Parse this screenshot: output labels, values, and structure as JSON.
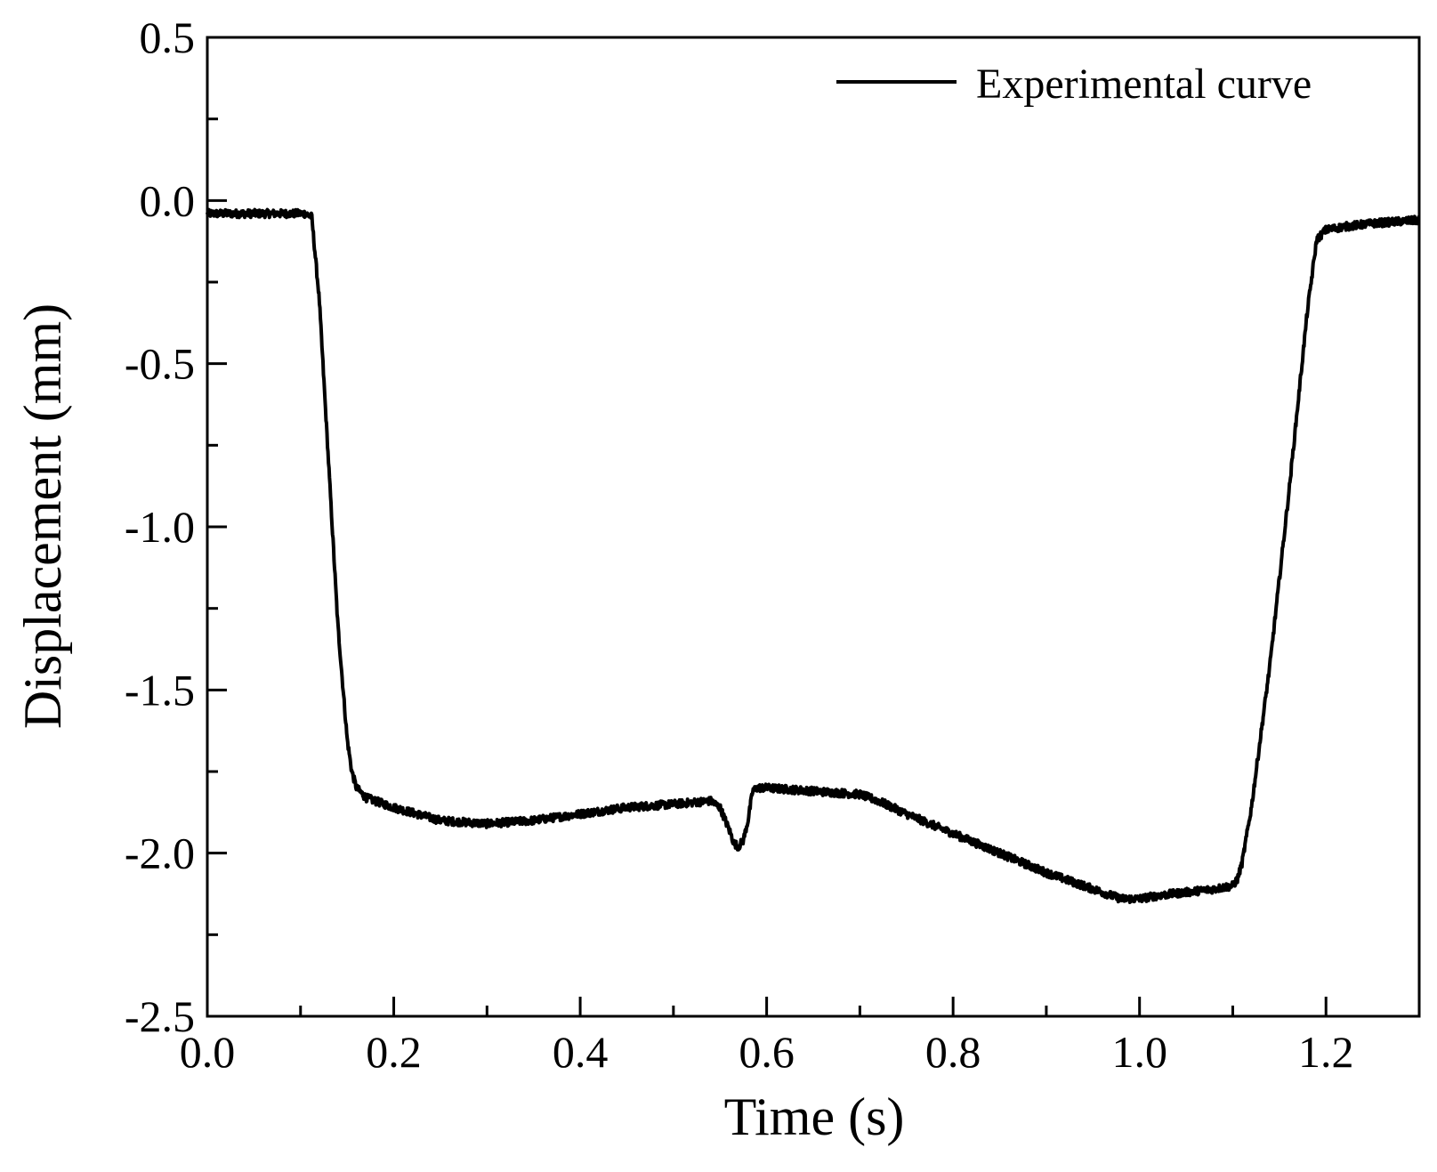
{
  "chart_data": {
    "type": "line",
    "title": "",
    "xlabel": "Time (s)",
    "ylabel": "Displacement (mm)",
    "xlim": [
      0.0,
      1.3
    ],
    "ylim": [
      -2.5,
      0.5
    ],
    "x_ticks": [
      0.0,
      0.2,
      0.4,
      0.6,
      0.8,
      1.0,
      1.2
    ],
    "x_tick_labels": [
      "0.0",
      "0.2",
      "0.4",
      "0.6",
      "0.8",
      "1.0",
      "1.2"
    ],
    "x_minor_ticks": [
      0.1,
      0.3,
      0.5,
      0.7,
      0.9,
      1.1
    ],
    "y_ticks": [
      0.5,
      0.0,
      -0.5,
      -1.0,
      -1.5,
      -2.0,
      -2.5
    ],
    "y_tick_labels": [
      "0.5",
      "0.0",
      "-0.5",
      "-1.0",
      "-1.5",
      "-2.0",
      "-2.5"
    ],
    "y_minor_ticks": [
      0.25,
      -0.25,
      -0.75,
      -1.25,
      -1.75,
      -2.25
    ],
    "grid": false,
    "legend": {
      "position": "top-right",
      "entries": [
        "Experimental curve"
      ]
    },
    "series": [
      {
        "name": "Experimental curve",
        "color": "#000000",
        "noise_amplitude_mm": 0.012,
        "x": [
          0.0,
          0.05,
          0.105,
          0.112,
          0.12,
          0.13,
          0.14,
          0.15,
          0.155,
          0.16,
          0.17,
          0.2,
          0.25,
          0.3,
          0.35,
          0.4,
          0.45,
          0.5,
          0.54,
          0.55,
          0.56,
          0.565,
          0.57,
          0.575,
          0.58,
          0.585,
          0.59,
          0.6,
          0.65,
          0.7,
          0.72,
          0.75,
          0.8,
          0.85,
          0.9,
          0.95,
          0.98,
          1.0,
          1.02,
          1.05,
          1.08,
          1.1,
          1.105,
          1.11,
          1.12,
          1.14,
          1.16,
          1.18,
          1.19,
          1.2,
          1.22,
          1.25,
          1.3
        ],
        "y": [
          -0.04,
          -0.04,
          -0.04,
          -0.05,
          -0.3,
          -0.8,
          -1.3,
          -1.65,
          -1.75,
          -1.8,
          -1.83,
          -1.86,
          -1.9,
          -1.91,
          -1.9,
          -1.88,
          -1.86,
          -1.85,
          -1.84,
          -1.86,
          -1.93,
          -1.97,
          -1.98,
          -1.96,
          -1.9,
          -1.81,
          -1.8,
          -1.8,
          -1.81,
          -1.82,
          -1.84,
          -1.88,
          -1.94,
          -2.0,
          -2.06,
          -2.11,
          -2.14,
          -2.14,
          -2.13,
          -2.12,
          -2.11,
          -2.1,
          -2.08,
          -2.03,
          -1.86,
          -1.42,
          -0.9,
          -0.34,
          -0.12,
          -0.09,
          -0.08,
          -0.07,
          -0.06
        ]
      }
    ]
  }
}
